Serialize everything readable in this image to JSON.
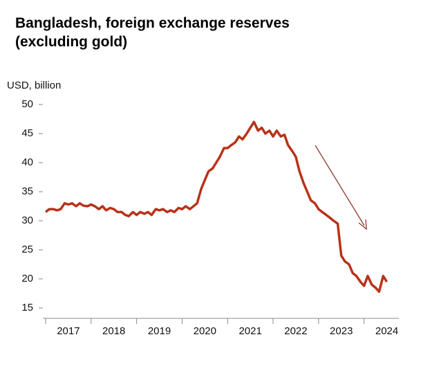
{
  "chart_data": {
    "type": "line",
    "title": "Bangladesh, foreign exchange reserves (excluding gold)",
    "y_axis_label": "USD, billion",
    "x": [
      2017,
      2017.08,
      2017.17,
      2017.25,
      2017.33,
      2017.42,
      2017.5,
      2017.58,
      2017.67,
      2017.75,
      2017.83,
      2017.92,
      2018,
      2018.08,
      2018.17,
      2018.25,
      2018.33,
      2018.42,
      2018.5,
      2018.58,
      2018.67,
      2018.75,
      2018.83,
      2018.92,
      2019,
      2019.08,
      2019.17,
      2019.25,
      2019.33,
      2019.42,
      2019.5,
      2019.58,
      2019.67,
      2019.75,
      2019.83,
      2019.92,
      2020,
      2020.08,
      2020.17,
      2020.25,
      2020.33,
      2020.42,
      2020.5,
      2020.58,
      2020.67,
      2020.75,
      2020.83,
      2020.92,
      2021,
      2021.08,
      2021.17,
      2021.25,
      2021.33,
      2021.42,
      2021.5,
      2021.58,
      2021.67,
      2021.75,
      2021.83,
      2021.92,
      2022,
      2022.08,
      2022.17,
      2022.25,
      2022.33,
      2022.42,
      2022.5,
      2022.58,
      2022.67,
      2022.75,
      2022.83,
      2022.92,
      2023,
      2023.08,
      2023.17,
      2023.25,
      2023.33,
      2023.42,
      2023.5,
      2023.58,
      2023.67,
      2023.75,
      2023.83,
      2023.92,
      2024,
      2024.08,
      2024.17,
      2024.25,
      2024.33,
      2024.42,
      2024.5
    ],
    "series": [
      {
        "name": "Foreign exchange reserves",
        "color": "#b83218",
        "values": [
          31.5,
          32,
          32,
          31.8,
          32,
          33,
          32.8,
          33,
          32.5,
          33,
          32.6,
          32.5,
          32.8,
          32.5,
          32,
          32.5,
          31.8,
          32.2,
          32,
          31.5,
          31.5,
          31,
          30.8,
          31.5,
          31,
          31.5,
          31.2,
          31.5,
          31,
          32,
          31.8,
          32,
          31.5,
          31.8,
          31.5,
          32.2,
          32,
          32.5,
          32,
          32.5,
          33,
          35.5,
          37,
          38.5,
          39,
          40,
          41,
          42.5,
          42.5,
          43,
          43.5,
          44.5,
          44,
          45,
          46,
          47,
          45.5,
          46,
          45,
          45.5,
          44.5,
          45.5,
          44.5,
          44.8,
          43,
          42,
          41,
          38.5,
          36.5,
          35,
          33.5,
          33,
          32,
          31.5,
          31,
          30.5,
          30,
          29.5,
          24,
          23,
          22.5,
          21,
          20.5,
          19.5,
          18.8,
          20.5,
          19,
          18.5,
          17.8,
          20.5,
          19.5
        ]
      }
    ],
    "xlim": [
      2017,
      2024.75
    ],
    "xticks": [
      2017,
      2018,
      2019,
      2020,
      2021,
      2022,
      2023,
      2024
    ],
    "ylim": [
      15,
      50
    ],
    "yticks": [
      15,
      20,
      25,
      30,
      35,
      40,
      45,
      50
    ],
    "grid": false
  }
}
